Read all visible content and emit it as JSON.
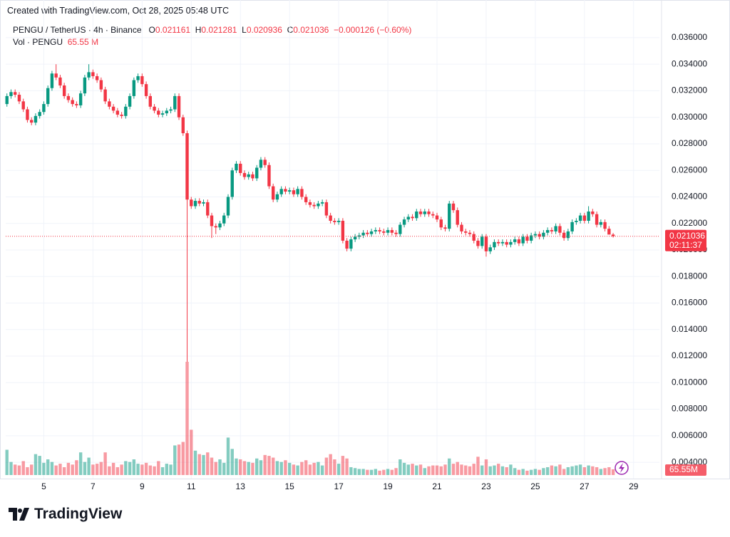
{
  "created_by": "Created with TradingView.com, Oct 28, 2025 05:48 UTC",
  "brand": "TradingView",
  "chart_data": {
    "type": "candlestick",
    "title": "PENGU / TetherUS · 4h · Binance",
    "ohlc_header": [
      {
        "label": "O",
        "value": "0.021161"
      },
      {
        "label": "H",
        "value": "0.021281"
      },
      {
        "label": "L",
        "value": "0.020936"
      },
      {
        "label": "C",
        "value": "0.021036"
      }
    ],
    "change": "−0.000126 (−0.60%)",
    "volume_name": "Vol · PENGU",
    "volume_header_value": "65.55 M",
    "last_price_label": "0.021036",
    "countdown": "02:11:37",
    "last_volume_label": "65.55M",
    "up_color": "#089981",
    "down_color": "#f23645",
    "grid": true,
    "xlim": [
      3.45,
      30.05
    ],
    "xticks": [
      5,
      7,
      9,
      11,
      13,
      15,
      17,
      19,
      21,
      23,
      25,
      27,
      29
    ],
    "ylim": [
      0.00277,
      0.03723
    ],
    "yticks": [
      {
        "value": 0.004,
        "label": "0.004000"
      },
      {
        "value": 0.006,
        "label": "0.006000"
      },
      {
        "value": 0.008,
        "label": "0.008000"
      },
      {
        "value": 0.01,
        "label": "0.010000"
      },
      {
        "value": 0.012,
        "label": "0.012000"
      },
      {
        "value": 0.014,
        "label": "0.014000"
      },
      {
        "value": 0.016,
        "label": "0.016000"
      },
      {
        "value": 0.018,
        "label": "0.018000"
      },
      {
        "value": 0.02,
        "label": "0.020000"
      },
      {
        "value": 0.022,
        "label": "0.022000"
      },
      {
        "value": 0.024,
        "label": "0.024000"
      },
      {
        "value": 0.026,
        "label": "0.026000"
      },
      {
        "value": 0.028,
        "label": "0.028000"
      },
      {
        "value": 0.03,
        "label": "0.030000"
      },
      {
        "value": 0.032,
        "label": "0.032000"
      },
      {
        "value": 0.034,
        "label": "0.034000"
      },
      {
        "value": 0.036,
        "label": "0.036000"
      }
    ],
    "x": [
      3.5,
      3.667,
      3.833,
      4,
      4.167,
      4.333,
      4.5,
      4.667,
      4.833,
      5,
      5.167,
      5.333,
      5.5,
      5.667,
      5.833,
      6,
      6.167,
      6.333,
      6.5,
      6.667,
      6.833,
      7,
      7.167,
      7.333,
      7.5,
      7.667,
      7.833,
      8,
      8.167,
      8.333,
      8.5,
      8.667,
      8.833,
      9,
      9.167,
      9.333,
      9.5,
      9.667,
      9.833,
      10,
      10.167,
      10.333,
      10.5,
      10.667,
      10.833,
      11,
      11.167,
      11.333,
      11.5,
      11.667,
      11.833,
      12,
      12.167,
      12.333,
      12.5,
      12.667,
      12.833,
      13,
      13.167,
      13.333,
      13.5,
      13.667,
      13.833,
      14,
      14.167,
      14.333,
      14.5,
      14.667,
      14.833,
      15,
      15.167,
      15.333,
      15.5,
      15.667,
      15.833,
      16,
      16.167,
      16.333,
      16.5,
      16.667,
      16.833,
      17,
      17.167,
      17.333,
      17.5,
      17.667,
      17.833,
      18,
      18.167,
      18.333,
      18.5,
      18.667,
      18.833,
      19,
      19.167,
      19.333,
      19.5,
      19.667,
      19.833,
      20,
      20.167,
      20.333,
      20.5,
      20.667,
      20.833,
      21,
      21.167,
      21.333,
      21.5,
      21.667,
      21.833,
      22,
      22.167,
      22.333,
      22.5,
      22.667,
      22.833,
      23,
      23.167,
      23.333,
      23.5,
      23.667,
      23.833,
      24,
      24.167,
      24.333,
      24.5,
      24.667,
      24.833,
      25,
      25.167,
      25.333,
      25.5,
      25.667,
      25.833,
      26,
      26.167,
      26.333,
      26.5,
      26.667,
      26.833,
      27,
      27.167,
      27.333,
      27.5,
      27.667,
      27.833,
      28,
      28.167
    ],
    "open": [
      0.031,
      0.0316,
      0.0319,
      0.0317,
      0.0312,
      0.0306,
      0.0298,
      0.0296,
      0.0301,
      0.0304,
      0.031,
      0.0322,
      0.0333,
      0.033,
      0.0324,
      0.0316,
      0.0313,
      0.031,
      0.0309,
      0.0318,
      0.033,
      0.0334,
      0.0331,
      0.0328,
      0.0321,
      0.0312,
      0.0308,
      0.0305,
      0.0302,
      0.0301,
      0.0308,
      0.0316,
      0.0328,
      0.0331,
      0.0325,
      0.0316,
      0.0308,
      0.0305,
      0.0302,
      0.0303,
      0.0305,
      0.0306,
      0.0316,
      0.03,
      0.0288,
      0.0238,
      0.0233,
      0.0237,
      0.0235,
      0.0236,
      0.0226,
      0.0218,
      0.0217,
      0.022,
      0.0226,
      0.024,
      0.026,
      0.0265,
      0.0258,
      0.0255,
      0.0257,
      0.0254,
      0.0262,
      0.0268,
      0.0264,
      0.0248,
      0.0238,
      0.0242,
      0.0246,
      0.0244,
      0.0245,
      0.0242,
      0.0246,
      0.024,
      0.0236,
      0.0234,
      0.0233,
      0.0235,
      0.0236,
      0.0226,
      0.0222,
      0.0221,
      0.0222,
      0.0207,
      0.0201,
      0.0208,
      0.021,
      0.0211,
      0.0213,
      0.0212,
      0.0214,
      0.0215,
      0.0214,
      0.0213,
      0.0215,
      0.0213,
      0.0212,
      0.0219,
      0.0223,
      0.0225,
      0.0224,
      0.0229,
      0.0227,
      0.0229,
      0.0227,
      0.0226,
      0.0223,
      0.0217,
      0.0216,
      0.0235,
      0.023,
      0.0219,
      0.0214,
      0.0213,
      0.0212,
      0.0207,
      0.0203,
      0.021,
      0.0199,
      0.0202,
      0.0206,
      0.0205,
      0.0206,
      0.0204,
      0.0206,
      0.0208,
      0.0205,
      0.021,
      0.0207,
      0.0211,
      0.0212,
      0.021,
      0.0213,
      0.0215,
      0.0214,
      0.0218,
      0.0213,
      0.0209,
      0.0214,
      0.0221,
      0.0222,
      0.0226,
      0.0222,
      0.0229,
      0.0227,
      0.0219,
      0.0221,
      0.0216,
      0.021161
    ],
    "high": [
      0.0318,
      0.0321,
      0.0321,
      0.0319,
      0.0314,
      0.0308,
      0.03,
      0.0303,
      0.0306,
      0.0312,
      0.0324,
      0.0335,
      0.034,
      0.0332,
      0.0326,
      0.0318,
      0.0315,
      0.0312,
      0.032,
      0.0332,
      0.034,
      0.0336,
      0.0333,
      0.033,
      0.0323,
      0.0314,
      0.031,
      0.0307,
      0.0304,
      0.031,
      0.0318,
      0.033,
      0.0333,
      0.0333,
      0.0327,
      0.0318,
      0.031,
      0.0307,
      0.0305,
      0.0307,
      0.0308,
      0.0318,
      0.0318,
      0.0302,
      0.029,
      0.024,
      0.0239,
      0.0239,
      0.0238,
      0.0238,
      0.0228,
      0.022,
      0.0222,
      0.0228,
      0.0242,
      0.0262,
      0.0267,
      0.0267,
      0.026,
      0.0259,
      0.0259,
      0.0264,
      0.027,
      0.027,
      0.0266,
      0.025,
      0.0244,
      0.0248,
      0.0248,
      0.0247,
      0.0247,
      0.0248,
      0.0248,
      0.0242,
      0.0238,
      0.0236,
      0.0237,
      0.0238,
      0.0238,
      0.0228,
      0.0224,
      0.0224,
      0.0224,
      0.0209,
      0.021,
      0.0212,
      0.0213,
      0.0215,
      0.0215,
      0.0216,
      0.0217,
      0.0217,
      0.0216,
      0.0217,
      0.0217,
      0.0215,
      0.0221,
      0.0225,
      0.0227,
      0.0227,
      0.0231,
      0.0231,
      0.0231,
      0.0231,
      0.0229,
      0.0228,
      0.0225,
      0.0219,
      0.0237,
      0.0237,
      0.0232,
      0.0221,
      0.0216,
      0.0215,
      0.0214,
      0.0209,
      0.0212,
      0.0212,
      0.0204,
      0.0208,
      0.0208,
      0.0208,
      0.0208,
      0.0208,
      0.021,
      0.021,
      0.0212,
      0.0212,
      0.0213,
      0.0214,
      0.0214,
      0.0215,
      0.0217,
      0.0217,
      0.022,
      0.022,
      0.0215,
      0.0216,
      0.0223,
      0.0224,
      0.0228,
      0.0228,
      0.0233,
      0.0231,
      0.0229,
      0.0223,
      0.0223,
      0.0218,
      0.021281
    ],
    "low": [
      0.0308,
      0.0314,
      0.0315,
      0.031,
      0.0304,
      0.0296,
      0.0294,
      0.0294,
      0.0299,
      0.0302,
      0.0308,
      0.032,
      0.0328,
      0.0322,
      0.0314,
      0.0311,
      0.0308,
      0.0307,
      0.0307,
      0.0316,
      0.0328,
      0.0329,
      0.0326,
      0.0319,
      0.031,
      0.0306,
      0.0303,
      0.03,
      0.0299,
      0.0299,
      0.0306,
      0.0314,
      0.0326,
      0.0323,
      0.0314,
      0.0306,
      0.0303,
      0.03,
      0.03,
      0.0301,
      0.0303,
      0.0304,
      0.0298,
      0.0286,
      0.01157,
      0.0231,
      0.0231,
      0.0233,
      0.0233,
      0.0224,
      0.0209,
      0.0212,
      0.0215,
      0.0218,
      0.0224,
      0.0238,
      0.0258,
      0.0256,
      0.0253,
      0.0253,
      0.0252,
      0.0252,
      0.026,
      0.0262,
      0.0246,
      0.0236,
      0.0236,
      0.024,
      0.0242,
      0.0242,
      0.024,
      0.024,
      0.0238,
      0.0234,
      0.0232,
      0.0231,
      0.0231,
      0.0233,
      0.0224,
      0.022,
      0.0219,
      0.0219,
      0.0205,
      0.0199,
      0.0199,
      0.0206,
      0.0208,
      0.0209,
      0.021,
      0.021,
      0.0212,
      0.0212,
      0.0211,
      0.0211,
      0.0211,
      0.021,
      0.021,
      0.0217,
      0.0221,
      0.0222,
      0.0222,
      0.0225,
      0.0225,
      0.0225,
      0.0224,
      0.0221,
      0.0215,
      0.0214,
      0.0214,
      0.0228,
      0.0217,
      0.0212,
      0.0211,
      0.021,
      0.0205,
      0.0201,
      0.0201,
      0.0195,
      0.0197,
      0.02,
      0.0203,
      0.0203,
      0.0202,
      0.0202,
      0.0204,
      0.0203,
      0.0203,
      0.0205,
      0.0205,
      0.0209,
      0.0208,
      0.0208,
      0.0211,
      0.0212,
      0.0212,
      0.0211,
      0.0207,
      0.0207,
      0.0212,
      0.0219,
      0.022,
      0.022,
      0.022,
      0.0225,
      0.0217,
      0.0217,
      0.0214,
      0.0214,
      0.020936
    ],
    "close": [
      0.0316,
      0.0319,
      0.0317,
      0.0312,
      0.0306,
      0.0298,
      0.0296,
      0.0301,
      0.0304,
      0.031,
      0.0322,
      0.0333,
      0.033,
      0.0324,
      0.0316,
      0.0313,
      0.031,
      0.0309,
      0.0318,
      0.033,
      0.0334,
      0.0331,
      0.0328,
      0.0321,
      0.0312,
      0.0308,
      0.0305,
      0.0302,
      0.0301,
      0.0308,
      0.0316,
      0.0328,
      0.0331,
      0.0325,
      0.0316,
      0.0308,
      0.0305,
      0.0302,
      0.0303,
      0.0305,
      0.0306,
      0.0316,
      0.03,
      0.0288,
      0.0238,
      0.0233,
      0.0237,
      0.0235,
      0.0236,
      0.0226,
      0.0218,
      0.0217,
      0.022,
      0.0226,
      0.024,
      0.026,
      0.0265,
      0.0258,
      0.0255,
      0.0257,
      0.0254,
      0.0262,
      0.0268,
      0.0264,
      0.0248,
      0.0238,
      0.0242,
      0.0246,
      0.0244,
      0.0245,
      0.0242,
      0.0246,
      0.024,
      0.0236,
      0.0234,
      0.0233,
      0.0235,
      0.0236,
      0.0226,
      0.0222,
      0.0221,
      0.0222,
      0.0207,
      0.0201,
      0.0208,
      0.021,
      0.0211,
      0.0213,
      0.0212,
      0.0214,
      0.0215,
      0.0214,
      0.0213,
      0.0215,
      0.0213,
      0.0212,
      0.0219,
      0.0223,
      0.0225,
      0.0224,
      0.0229,
      0.0227,
      0.0229,
      0.0227,
      0.0226,
      0.0223,
      0.0217,
      0.0216,
      0.0235,
      0.023,
      0.0219,
      0.0214,
      0.0213,
      0.0212,
      0.0207,
      0.0203,
      0.021,
      0.0199,
      0.0202,
      0.0206,
      0.0205,
      0.0206,
      0.0204,
      0.0206,
      0.0208,
      0.0205,
      0.021,
      0.0207,
      0.0211,
      0.0212,
      0.021,
      0.0213,
      0.0215,
      0.0214,
      0.0218,
      0.0213,
      0.0209,
      0.0214,
      0.0221,
      0.0222,
      0.0226,
      0.0222,
      0.0229,
      0.0227,
      0.0219,
      0.0221,
      0.0216,
      0.021161,
      0.021036
    ],
    "volume": [
      290,
      150,
      120,
      110,
      160,
      90,
      120,
      240,
      220,
      140,
      180,
      150,
      110,
      130,
      90,
      140,
      120,
      170,
      260,
      150,
      200,
      120,
      130,
      150,
      260,
      100,
      140,
      90,
      120,
      160,
      150,
      180,
      130,
      120,
      140,
      110,
      100,
      160,
      90,
      130,
      120,
      340,
      350,
      380,
      1300,
      520,
      280,
      240,
      230,
      260,
      200,
      150,
      180,
      140,
      430,
      300,
      190,
      180,
      160,
      150,
      140,
      190,
      170,
      230,
      220,
      200,
      160,
      150,
      170,
      140,
      120,
      110,
      150,
      170,
      120,
      140,
      150,
      110,
      200,
      240,
      180,
      130,
      220,
      190,
      90,
      80,
      70,
      70,
      60,
      60,
      70,
      50,
      60,
      70,
      60,
      80,
      180,
      140,
      120,
      130,
      110,
      120,
      80,
      100,
      110,
      110,
      100,
      120,
      190,
      130,
      150,
      120,
      110,
      100,
      130,
      210,
      110,
      180,
      100,
      110,
      130,
      100,
      90,
      120,
      80,
      60,
      70,
      50,
      60,
      70,
      60,
      80,
      90,
      110,
      100,
      120,
      70,
      90,
      100,
      110,
      120,
      90,
      110,
      100,
      90,
      70,
      80,
      90,
      65.55
    ]
  }
}
